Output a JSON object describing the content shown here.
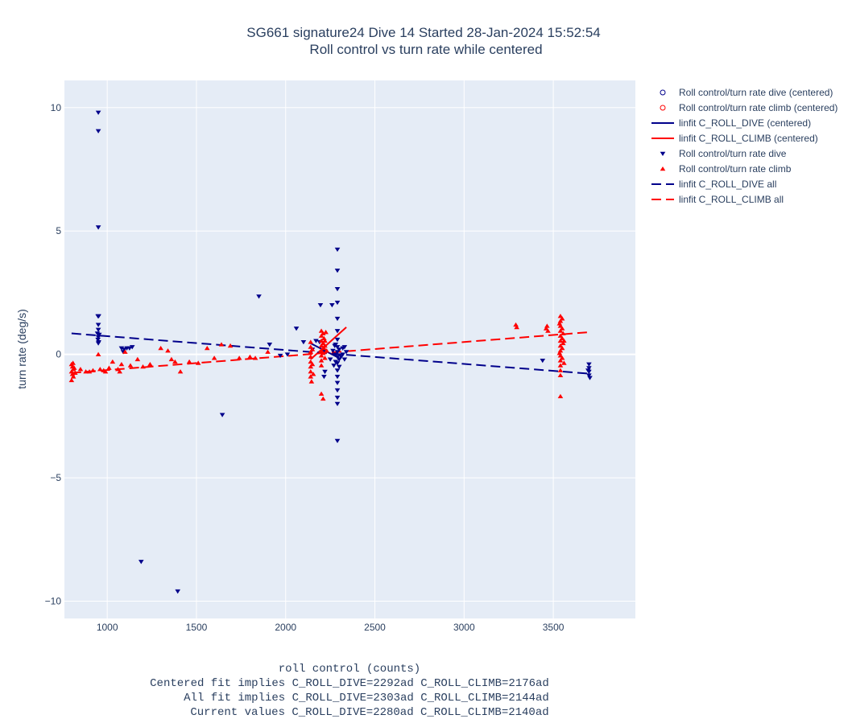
{
  "chart_data": {
    "type": "scatter",
    "title_lines": [
      "SG661 signature24 Dive 14 Started 28-Jan-2024 15:52:54",
      "Roll control vs turn rate while centered"
    ],
    "xlabel_lines": [
      "roll control (counts)",
      "Centered fit implies C_ROLL_DIVE=2292ad C_ROLL_CLIMB=2176ad",
      "All fit implies C_ROLL_DIVE=2303ad C_ROLL_CLIMB=2144ad",
      "Current values C_ROLL_DIVE=2280ad C_ROLL_CLIMB=2140ad"
    ],
    "ylabel": "turn rate (deg/s)",
    "xlim": [
      760,
      3960
    ],
    "ylim": [
      -10.7,
      11.1
    ],
    "xticks": [
      1000,
      1500,
      2000,
      2500,
      3000,
      3500
    ],
    "yticks": [
      -10,
      -5,
      0,
      5,
      10
    ],
    "ytick_labels": [
      "−10",
      "−5",
      "0",
      "5",
      "10"
    ],
    "grid": true,
    "legend_position": "right",
    "colors": {
      "dive": "#00008b",
      "climb": "#ff0000",
      "plot_bg": "#e5ecf6",
      "grid": "#ffffff"
    },
    "legend": [
      {
        "label": "Roll control/turn rate dive (centered)",
        "kind": "open-circle",
        "color": "#00008b"
      },
      {
        "label": "Roll control/turn rate climb (centered)",
        "kind": "open-circle",
        "color": "#ff0000"
      },
      {
        "label": "linfit C_ROLL_DIVE (centered)",
        "kind": "solid-line",
        "color": "#00008b"
      },
      {
        "label": "linfit C_ROLL_CLIMB (centered)",
        "kind": "solid-line",
        "color": "#ff0000"
      },
      {
        "label": "Roll control/turn rate dive",
        "kind": "triangle-down",
        "color": "#00008b"
      },
      {
        "label": "Roll control/turn rate climb",
        "kind": "triangle-up",
        "color": "#ff0000"
      },
      {
        "label": "linfit C_ROLL_DIVE all",
        "kind": "dash-line",
        "color": "#00008b"
      },
      {
        "label": "linfit C_ROLL_CLIMB all",
        "kind": "dash-line",
        "color": "#ff0000"
      }
    ],
    "series": [
      {
        "name": "Roll control/turn rate dive",
        "marker": "triangle-down",
        "color": "#00008b",
        "points": [
          [
            950,
            9.8
          ],
          [
            950,
            9.05
          ],
          [
            950,
            5.15
          ],
          [
            948,
            1.55
          ],
          [
            952,
            1.55
          ],
          [
            950,
            1.2
          ],
          [
            950,
            1.0
          ],
          [
            945,
            0.85
          ],
          [
            955,
            0.8
          ],
          [
            950,
            0.7
          ],
          [
            948,
            0.6
          ],
          [
            952,
            0.5
          ],
          [
            950,
            0.45
          ],
          [
            1080,
            0.25
          ],
          [
            1095,
            0.2
          ],
          [
            1110,
            0.25
          ],
          [
            1125,
            0.25
          ],
          [
            1140,
            0.3
          ],
          [
            1090,
            0.1
          ],
          [
            1190,
            -8.4
          ],
          [
            1395,
            -9.6
          ],
          [
            1645,
            -2.45
          ],
          [
            1850,
            2.35
          ],
          [
            1910,
            0.4
          ],
          [
            1970,
            -0.05
          ],
          [
            2010,
            0.0
          ],
          [
            2060,
            1.05
          ],
          [
            2100,
            0.5
          ],
          [
            2150,
            0.2
          ],
          [
            2170,
            0.55
          ],
          [
            2190,
            0.5
          ],
          [
            2195,
            2.0
          ],
          [
            2210,
            0.1
          ],
          [
            2215,
            -0.9
          ],
          [
            2220,
            -0.7
          ],
          [
            2260,
            2.0
          ],
          [
            2290,
            4.25
          ],
          [
            2290,
            3.4
          ],
          [
            2290,
            2.65
          ],
          [
            2290,
            2.1
          ],
          [
            2290,
            1.45
          ],
          [
            2290,
            0.95
          ],
          [
            2290,
            0.6
          ],
          [
            2290,
            0.3
          ],
          [
            2290,
            0.1
          ],
          [
            2290,
            -0.1
          ],
          [
            2290,
            -0.35
          ],
          [
            2290,
            -0.65
          ],
          [
            2290,
            -0.9
          ],
          [
            2290,
            -1.15
          ],
          [
            2290,
            -1.45
          ],
          [
            2290,
            -1.75
          ],
          [
            2290,
            -2.0
          ],
          [
            2290,
            -3.5
          ],
          [
            2280,
            0.4
          ],
          [
            2280,
            0.0
          ],
          [
            2280,
            -0.3
          ],
          [
            2300,
            0.2
          ],
          [
            2300,
            -0.2
          ],
          [
            2300,
            -0.5
          ],
          [
            2320,
            0.25
          ],
          [
            2320,
            0.0
          ],
          [
            2330,
            0.3
          ],
          [
            2330,
            -0.2
          ],
          [
            2340,
            0.1
          ],
          [
            2310,
            -0.1
          ],
          [
            2250,
            -0.2
          ],
          [
            2265,
            0.15
          ],
          [
            2270,
            -0.45
          ],
          [
            2275,
            0.35
          ],
          [
            3440,
            -0.25
          ],
          [
            3700,
            -0.4
          ],
          [
            3700,
            -0.55
          ],
          [
            3700,
            -0.7
          ],
          [
            3700,
            -0.85
          ],
          [
            3705,
            -0.95
          ],
          [
            3695,
            -0.65
          ]
        ]
      },
      {
        "name": "Roll control/turn rate climb",
        "marker": "triangle-up",
        "color": "#ff0000",
        "points": [
          [
            800,
            -0.4
          ],
          [
            805,
            -0.5
          ],
          [
            810,
            -0.6
          ],
          [
            800,
            -0.7
          ],
          [
            805,
            -0.8
          ],
          [
            810,
            -0.9
          ],
          [
            800,
            -1.05
          ],
          [
            815,
            -0.55
          ],
          [
            820,
            -0.75
          ],
          [
            808,
            -0.35
          ],
          [
            850,
            -0.6
          ],
          [
            880,
            -0.7
          ],
          [
            900,
            -0.7
          ],
          [
            920,
            -0.65
          ],
          [
            950,
            0.0
          ],
          [
            960,
            -0.6
          ],
          [
            980,
            -0.65
          ],
          [
            990,
            -0.7
          ],
          [
            1010,
            -0.55
          ],
          [
            1030,
            -0.3
          ],
          [
            1060,
            -0.6
          ],
          [
            1070,
            -0.7
          ],
          [
            1080,
            -0.4
          ],
          [
            1100,
            0.1
          ],
          [
            1130,
            -0.45
          ],
          [
            1170,
            -0.2
          ],
          [
            1200,
            -0.5
          ],
          [
            1240,
            -0.4
          ],
          [
            1300,
            0.25
          ],
          [
            1340,
            0.15
          ],
          [
            1360,
            -0.2
          ],
          [
            1380,
            -0.3
          ],
          [
            1410,
            -0.7
          ],
          [
            1460,
            -0.3
          ],
          [
            1510,
            -0.35
          ],
          [
            1560,
            0.25
          ],
          [
            1600,
            -0.15
          ],
          [
            1640,
            0.4
          ],
          [
            1690,
            0.35
          ],
          [
            1740,
            -0.15
          ],
          [
            1800,
            -0.1
          ],
          [
            1830,
            -0.15
          ],
          [
            1900,
            0.1
          ],
          [
            2140,
            0.5
          ],
          [
            2140,
            0.3
          ],
          [
            2140,
            0.1
          ],
          [
            2140,
            -0.1
          ],
          [
            2140,
            -0.3
          ],
          [
            2140,
            -0.5
          ],
          [
            2140,
            -0.7
          ],
          [
            2140,
            -0.9
          ],
          [
            2145,
            -1.1
          ],
          [
            2150,
            0.2
          ],
          [
            2150,
            -0.4
          ],
          [
            2155,
            -0.8
          ],
          [
            2200,
            0.95
          ],
          [
            2200,
            0.75
          ],
          [
            2200,
            0.55
          ],
          [
            2200,
            0.35
          ],
          [
            2200,
            0.15
          ],
          [
            2200,
            -0.05
          ],
          [
            2200,
            -0.25
          ],
          [
            2200,
            -0.45
          ],
          [
            2210,
            0.85
          ],
          [
            2210,
            0.45
          ],
          [
            2210,
            0.05
          ],
          [
            2215,
            0.65
          ],
          [
            2215,
            0.25
          ],
          [
            2220,
            0.55
          ],
          [
            2220,
            -0.15
          ],
          [
            2220,
            0.35
          ],
          [
            2225,
            0.9
          ],
          [
            2200,
            -1.6
          ],
          [
            2210,
            -1.8
          ],
          [
            2230,
            0.15
          ],
          [
            3290,
            1.2
          ],
          [
            3295,
            1.1
          ],
          [
            3460,
            1.05
          ],
          [
            3465,
            1.15
          ],
          [
            3470,
            0.95
          ],
          [
            3540,
            1.55
          ],
          [
            3540,
            1.35
          ],
          [
            3540,
            1.15
          ],
          [
            3540,
            0.95
          ],
          [
            3540,
            0.75
          ],
          [
            3540,
            0.55
          ],
          [
            3540,
            0.35
          ],
          [
            3540,
            0.15
          ],
          [
            3540,
            -0.05
          ],
          [
            3540,
            -0.25
          ],
          [
            3540,
            -0.45
          ],
          [
            3540,
            -0.65
          ],
          [
            3540,
            -0.85
          ],
          [
            3540,
            -1.7
          ],
          [
            3550,
            1.45
          ],
          [
            3550,
            1.05
          ],
          [
            3550,
            0.65
          ],
          [
            3550,
            0.25
          ],
          [
            3550,
            -0.15
          ],
          [
            3555,
            0.85
          ],
          [
            3555,
            0.45
          ],
          [
            3535,
            1.25
          ],
          [
            3535,
            0.05
          ],
          [
            3560,
            -0.35
          ],
          [
            3560,
            0.55
          ]
        ]
      },
      {
        "name": "linfit C_ROLL_DIVE (centered)",
        "line": "solid",
        "color": "#00008b",
        "points": [
          [
            2140,
            0.45
          ],
          [
            2300,
            -0.15
          ]
        ]
      },
      {
        "name": "linfit C_ROLL_CLIMB (centered)",
        "line": "solid",
        "color": "#ff0000",
        "points": [
          [
            2140,
            -0.2
          ],
          [
            2340,
            1.1
          ]
        ]
      },
      {
        "name": "linfit C_ROLL_DIVE all",
        "line": "dash",
        "color": "#00008b",
        "points": [
          [
            800,
            0.85
          ],
          [
            3700,
            -0.78
          ]
        ]
      },
      {
        "name": "linfit C_ROLL_CLIMB all",
        "line": "dash",
        "color": "#ff0000",
        "points": [
          [
            800,
            -0.75
          ],
          [
            3700,
            0.9
          ]
        ]
      }
    ]
  }
}
